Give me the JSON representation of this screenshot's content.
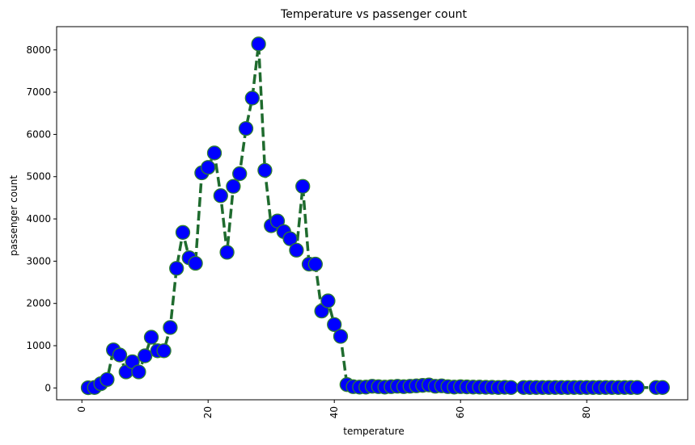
{
  "chart_data": {
    "type": "line",
    "title": "Temperature vs passenger count",
    "xlabel": "temperature",
    "ylabel": "passenger count",
    "xlim": [
      -4,
      96
    ],
    "ylim": [
      -280,
      8550
    ],
    "xticks": [
      0,
      20,
      40,
      60,
      80
    ],
    "yticks": [
      0,
      1000,
      2000,
      3000,
      4000,
      5000,
      6000,
      7000,
      8000
    ],
    "grid": false,
    "legend": "none",
    "line_style": "dashed",
    "colors": {
      "line": "#1f6b2e",
      "marker_fill": "#0000ff",
      "marker_edge": "#2e7d32"
    },
    "series": [
      {
        "x": [
          1,
          2,
          3,
          4,
          5,
          6,
          7,
          8,
          9,
          10,
          11,
          12,
          13,
          14,
          15,
          16,
          17,
          18,
          19,
          20,
          21,
          22,
          23,
          24,
          25,
          26,
          27,
          28,
          29,
          30,
          31,
          32,
          33,
          34,
          35,
          36,
          37,
          38,
          39,
          40,
          41,
          42,
          43,
          44,
          45,
          46,
          47,
          48,
          49,
          50,
          51,
          52,
          53,
          54,
          55,
          56,
          57,
          58,
          59,
          60,
          61,
          62,
          63,
          64,
          65,
          66,
          67,
          68,
          70,
          71,
          72,
          73,
          74,
          75,
          76,
          77,
          78,
          79,
          80,
          81,
          82,
          83,
          84,
          85,
          86,
          87,
          88,
          91,
          92
        ],
        "y": [
          5,
          10,
          100,
          200,
          900,
          780,
          380,
          620,
          380,
          760,
          1200,
          880,
          880,
          1430,
          2830,
          3680,
          3080,
          2950,
          5090,
          5220,
          5560,
          4550,
          3210,
          4770,
          5070,
          6140,
          6860,
          8140,
          5150,
          3840,
          3950,
          3700,
          3530,
          3260,
          4770,
          2930,
          2930,
          1820,
          2060,
          1500,
          1220,
          80,
          30,
          20,
          20,
          40,
          30,
          20,
          30,
          40,
          30,
          40,
          50,
          60,
          70,
          40,
          50,
          30,
          20,
          30,
          25,
          20,
          20,
          15,
          15,
          10,
          15,
          10,
          10,
          10,
          10,
          10,
          10,
          10,
          10,
          10,
          10,
          10,
          10,
          10,
          10,
          10,
          10,
          10,
          10,
          10,
          10,
          10,
          10
        ]
      }
    ]
  }
}
